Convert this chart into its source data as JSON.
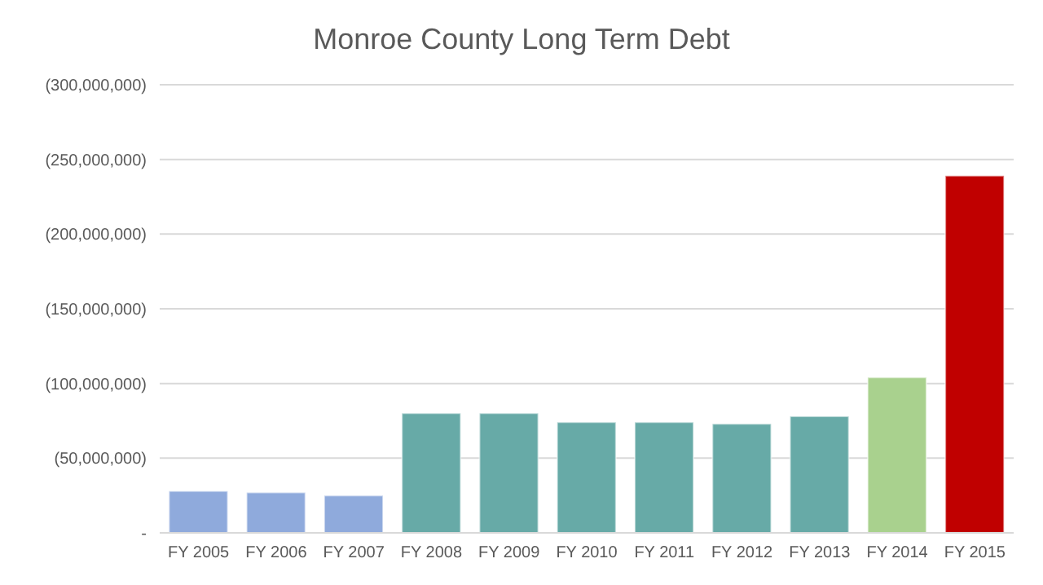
{
  "chart_data": {
    "type": "bar",
    "title": "Monroe County Long Term Debt",
    "categories": [
      "FY 2005",
      "FY 2006",
      "FY 2007",
      "FY 2008",
      "FY 2009",
      "FY 2010",
      "FY 2011",
      "FY 2012",
      "FY 2013",
      "FY 2014",
      "FY 2015"
    ],
    "values": [
      28000000,
      27000000,
      25000000,
      80000000,
      80000000,
      74000000,
      74000000,
      73000000,
      78000000,
      104000000,
      239000000
    ],
    "colors": [
      "#8faadc",
      "#8faadc",
      "#8faadc",
      "#67aaa7",
      "#67aaa7",
      "#67aaa7",
      "#67aaa7",
      "#67aaa7",
      "#67aaa7",
      "#a9d18e",
      "#c00000"
    ],
    "ylim": [
      0,
      300000000
    ],
    "yticks": [
      {
        "value": 0,
        "label": "-"
      },
      {
        "value": 50000000,
        "label": "(50,000,000)"
      },
      {
        "value": 100000000,
        "label": "(100,000,000)"
      },
      {
        "value": 150000000,
        "label": "(150,000,000)"
      },
      {
        "value": 200000000,
        "label": "(200,000,000)"
      },
      {
        "value": 250000000,
        "label": "(250,000,000)"
      },
      {
        "value": 300000000,
        "label": "(300,000,000)"
      }
    ],
    "grid": "y",
    "legend": false
  }
}
